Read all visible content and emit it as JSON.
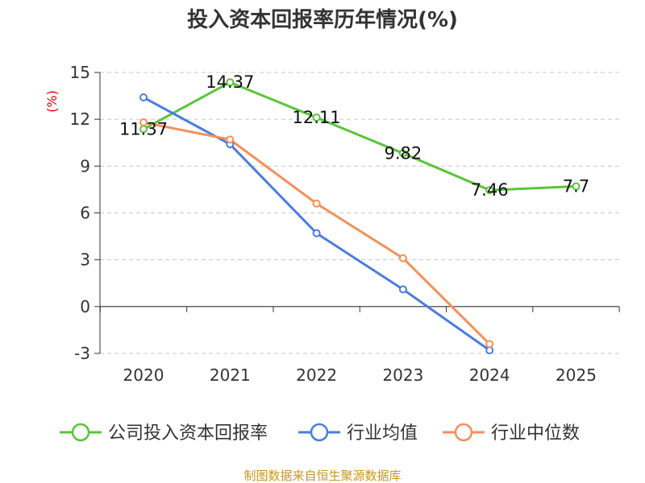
{
  "chart_data": {
    "type": "line",
    "title": "投入资本回报率历年情况(%)",
    "ylabel": "(%)",
    "categories": [
      "2020",
      "2021",
      "2022",
      "2023",
      "2024",
      "2025"
    ],
    "ylim": [
      -3,
      15
    ],
    "yticks": [
      15,
      12,
      9,
      6,
      3,
      0,
      -3
    ],
    "grid": "horizontal dashed",
    "legend_position": "bottom",
    "series": [
      {
        "name": "公司投入资本回报率",
        "color": "#5ac53a",
        "values": [
          11.37,
          14.37,
          12.11,
          9.82,
          7.46,
          7.7
        ],
        "labels": [
          "11.37",
          "14.37",
          "12.11",
          "9.82",
          "7.46",
          "7.7"
        ]
      },
      {
        "name": "行业均值",
        "color": "#4a7de0",
        "values": [
          13.4,
          10.4,
          4.7,
          1.1,
          -2.8,
          null
        ]
      },
      {
        "name": "行业中位数",
        "color": "#f4905a",
        "values": [
          11.8,
          10.7,
          6.6,
          3.1,
          -2.4,
          null
        ]
      }
    ]
  },
  "source": "制图数据来自恒生聚源数据库"
}
